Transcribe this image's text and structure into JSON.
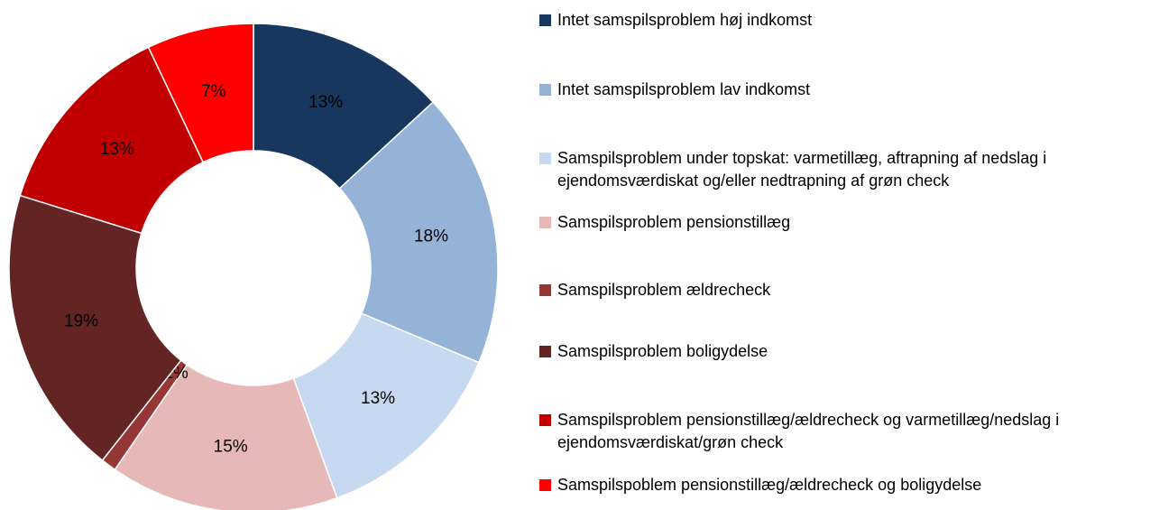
{
  "chart_data": {
    "type": "donut",
    "categories": [
      "Intet samspilsproblem høj indkomst",
      "Intet samspilsproblem lav indkomst",
      "Samspilsproblem under topskat: varmetillæg, aftrapning af nedslag i ejendomsværdiskat og/eller nedtrapning af grøn check",
      "Samspilsproblem pensionstillæg",
      "Samspilsproblem ældrecheck",
      "Samspilsproblem boligydelse",
      "Samspilsproblem pensionstillæg/ældrecheck og varmetillæg/nedslag i ejendomsværdiskat/grøn check",
      "Samspilspoblem pensionstillæg/ældrecheck og boligydelse"
    ],
    "values": [
      13,
      18,
      13,
      15,
      1,
      19,
      13,
      7
    ],
    "value_labels": [
      "13%",
      "18%",
      "13%",
      "15%",
      "1%",
      "19%",
      "13%",
      "7%"
    ],
    "colors": [
      "#17375e",
      "#95b3d7",
      "#c6d9f1",
      "#e6b9b8",
      "#953735",
      "#632523",
      "#c00000",
      "#ff0000"
    ]
  }
}
